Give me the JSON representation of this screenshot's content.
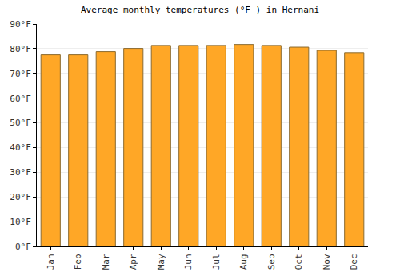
{
  "chart_data": {
    "type": "bar",
    "title": "Average monthly temperatures (°F ) in Hernani",
    "categories": [
      "Jan",
      "Feb",
      "Mar",
      "Apr",
      "May",
      "Jun",
      "Jul",
      "Aug",
      "Sep",
      "Oct",
      "Nov",
      "Dec"
    ],
    "values": [
      77.5,
      77.5,
      78.8,
      80.1,
      81.3,
      81.3,
      81.3,
      81.7,
      81.3,
      80.6,
      79.3,
      78.4
    ],
    "color": "#ffa726",
    "ylim": [
      0,
      90
    ],
    "yticks": [
      {
        "value": 0,
        "label": "0°F"
      },
      {
        "value": 10,
        "label": "10°F"
      },
      {
        "value": 20,
        "label": "20°F"
      },
      {
        "value": 30,
        "label": "30°F"
      },
      {
        "value": 40,
        "label": "40°F"
      },
      {
        "value": 50,
        "label": "50°F"
      },
      {
        "value": 60,
        "label": "60°F"
      },
      {
        "value": 70,
        "label": "70°F"
      },
      {
        "value": 80,
        "label": "80°F"
      },
      {
        "value": 90,
        "label": "90°F"
      }
    ],
    "grid": true
  }
}
